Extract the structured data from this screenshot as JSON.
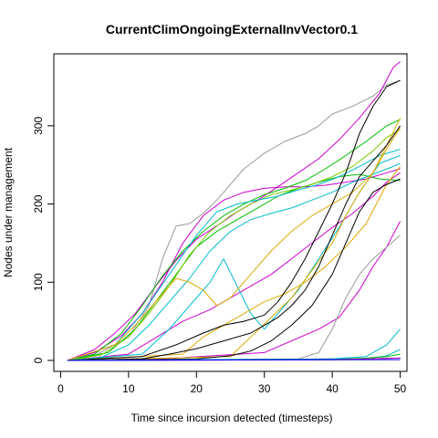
{
  "chart_data": {
    "type": "line",
    "title": "CurrentClimOngoingExternalInvVector0.1",
    "xlabel": "Time since incursion detected (timesteps)",
    "ylabel": "Nodes under management",
    "xlim": [
      -1,
      51
    ],
    "ylim": [
      -14,
      392
    ],
    "xticks": [
      0,
      10,
      20,
      30,
      40,
      50
    ],
    "yticks": [
      0,
      100,
      200,
      300
    ],
    "grid": false,
    "series": [
      {
        "color": "#999999",
        "x": [
          1,
          5,
          10,
          13,
          15,
          17,
          19,
          21,
          23,
          25,
          27,
          30,
          33,
          36,
          38,
          40,
          43,
          46,
          48,
          50
        ],
        "y": [
          0,
          6,
          30,
          70,
          130,
          172,
          175,
          188,
          205,
          225,
          245,
          265,
          280,
          290,
          300,
          315,
          325,
          338,
          352,
          358
        ]
      },
      {
        "color": "#CC00CC",
        "x": [
          1,
          5,
          8,
          11,
          14,
          17,
          20,
          23,
          26,
          29,
          32,
          35,
          38,
          41,
          44,
          47,
          49,
          50
        ],
        "y": [
          0,
          14,
          35,
          60,
          95,
          128,
          155,
          172,
          190,
          205,
          222,
          240,
          258,
          282,
          310,
          342,
          375,
          382
        ]
      },
      {
        "color": "#CC00CC",
        "x": [
          1,
          5,
          9,
          12,
          15,
          18,
          21,
          24,
          27,
          30,
          33,
          36,
          39,
          42,
          45,
          48,
          50
        ],
        "y": [
          0,
          10,
          32,
          60,
          100,
          150,
          185,
          205,
          215,
          220,
          222,
          222,
          224,
          228,
          232,
          240,
          245
        ]
      },
      {
        "color": "#CC00CC",
        "x": [
          1,
          10,
          18,
          22,
          25,
          28,
          31,
          34,
          37,
          40,
          43,
          46,
          48,
          50
        ],
        "y": [
          0,
          8,
          50,
          65,
          80,
          95,
          110,
          130,
          150,
          170,
          188,
          210,
          228,
          240
        ]
      },
      {
        "color": "#CC00CC",
        "x": [
          1,
          15,
          30,
          38,
          41,
          44,
          46,
          48,
          50
        ],
        "y": [
          0,
          2,
          10,
          40,
          55,
          90,
          120,
          145,
          178
        ]
      },
      {
        "color": "#00BB00",
        "x": [
          1,
          5,
          9,
          12,
          15,
          18,
          21,
          24,
          27,
          30,
          33,
          36,
          39,
          42,
          45,
          48,
          50
        ],
        "y": [
          0,
          8,
          35,
          70,
          108,
          140,
          165,
          185,
          200,
          212,
          220,
          230,
          245,
          262,
          280,
          300,
          308
        ]
      },
      {
        "color": "#00BB00",
        "x": [
          1,
          7,
          11,
          14,
          17,
          20,
          23,
          26,
          29,
          32,
          35,
          38,
          41,
          44,
          47,
          50
        ],
        "y": [
          0,
          10,
          40,
          75,
          110,
          145,
          165,
          180,
          195,
          210,
          220,
          228,
          235,
          238,
          232,
          230
        ]
      },
      {
        "color": "#77CC00",
        "x": [
          1,
          6,
          10,
          13,
          16,
          19,
          22,
          25,
          28,
          31,
          34,
          37,
          40,
          43,
          46,
          48,
          50
        ],
        "y": [
          0,
          7,
          30,
          60,
          95,
          135,
          165,
          185,
          200,
          212,
          218,
          225,
          235,
          248,
          268,
          285,
          295
        ]
      },
      {
        "color": "#00BBCC",
        "x": [
          1,
          8,
          12,
          16,
          20,
          23,
          26,
          29,
          32,
          35,
          38,
          41,
          44,
          47,
          50
        ],
        "y": [
          0,
          20,
          60,
          110,
          160,
          190,
          200,
          205,
          210,
          218,
          225,
          235,
          248,
          262,
          270
        ]
      },
      {
        "color": "#00BBCC",
        "x": [
          1,
          12,
          16,
          19,
          22,
          24,
          26,
          28,
          30,
          32,
          35,
          38,
          41,
          44,
          47,
          50
        ],
        "y": [
          0,
          8,
          40,
          70,
          100,
          130,
          95,
          60,
          40,
          60,
          90,
          130,
          170,
          215,
          252,
          262
        ]
      },
      {
        "color": "#00BBCC",
        "x": [
          1,
          6,
          10,
          13,
          16,
          19,
          22,
          25,
          28,
          31,
          34,
          37,
          40,
          43,
          46,
          49,
          50
        ],
        "y": [
          0,
          4,
          20,
          45,
          75,
          105,
          140,
          165,
          180,
          188,
          195,
          205,
          215,
          228,
          238,
          248,
          252
        ]
      },
      {
        "color": "#DDAA00",
        "x": [
          1,
          8,
          11,
          14,
          17,
          19,
          21,
          23,
          25,
          28,
          31,
          34,
          37,
          40,
          43,
          46,
          48,
          50
        ],
        "y": [
          0,
          20,
          45,
          75,
          105,
          100,
          90,
          70,
          80,
          110,
          140,
          165,
          185,
          200,
          215,
          240,
          270,
          298
        ]
      },
      {
        "color": "#DDAA00",
        "x": [
          1,
          25,
          28,
          31,
          34,
          37,
          40,
          42,
          44,
          46,
          48,
          50
        ],
        "y": [
          0,
          5,
          30,
          55,
          80,
          115,
          150,
          185,
          215,
          240,
          275,
          310
        ]
      },
      {
        "color": "#DDAA00",
        "x": [
          1,
          18,
          21,
          24,
          27,
          30,
          33,
          36,
          39,
          42,
          45,
          48,
          50
        ],
        "y": [
          0,
          8,
          30,
          45,
          60,
          75,
          85,
          100,
          120,
          145,
          175,
          225,
          248
        ]
      },
      {
        "color": "#000000",
        "x": [
          1,
          12,
          17,
          21,
          24,
          27,
          30,
          32,
          34,
          36,
          38,
          40,
          42,
          44,
          46,
          48,
          50
        ],
        "y": [
          0,
          5,
          20,
          35,
          45,
          50,
          58,
          75,
          100,
          130,
          165,
          200,
          240,
          290,
          325,
          350,
          358
        ]
      },
      {
        "color": "#000000",
        "x": [
          1,
          12,
          16,
          20,
          24,
          28,
          30,
          32,
          34,
          36,
          38,
          40,
          42,
          44,
          46,
          48,
          50
        ],
        "y": [
          0,
          2,
          8,
          15,
          25,
          35,
          45,
          55,
          70,
          90,
          120,
          160,
          200,
          235,
          255,
          275,
          300
        ]
      },
      {
        "color": "#000000",
        "x": [
          1,
          20,
          25,
          28,
          31,
          34,
          37,
          40,
          42,
          44,
          46,
          48,
          50
        ],
        "y": [
          0,
          2,
          6,
          12,
          25,
          45,
          70,
          110,
          150,
          190,
          215,
          225,
          232
        ]
      },
      {
        "color": "#000000",
        "x": [
          1,
          30,
          40,
          45,
          50
        ],
        "y": [
          0,
          1,
          2,
          2,
          3
        ]
      },
      {
        "color": "#999999",
        "x": [
          1,
          35,
          38,
          40,
          42,
          44,
          46,
          48,
          50
        ],
        "y": [
          0,
          2,
          10,
          40,
          80,
          110,
          130,
          145,
          160
        ]
      },
      {
        "color": "#00BBCC",
        "x": [
          1,
          40,
          45,
          48,
          50
        ],
        "y": [
          0,
          2,
          5,
          20,
          40
        ]
      },
      {
        "color": "#00BBCC",
        "x": [
          1,
          45,
          48,
          50
        ],
        "y": [
          0,
          2,
          6,
          14
        ]
      },
      {
        "color": "#00BB00",
        "x": [
          1,
          40,
          45,
          48,
          50
        ],
        "y": [
          0,
          1,
          3,
          5,
          8
        ]
      },
      {
        "color": "#CC00CC",
        "x": [
          1,
          40,
          50
        ],
        "y": [
          0,
          1,
          3
        ]
      },
      {
        "color": "#0000FF",
        "x": [
          1,
          50
        ],
        "y": [
          0,
          1
        ]
      }
    ]
  }
}
